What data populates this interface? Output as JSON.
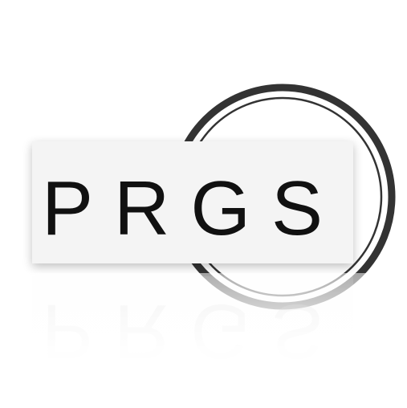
{
  "logo": {
    "text": "PRGS",
    "text_color": "#111111",
    "ring_color": "#333333",
    "panel_color": "#f4f4f4",
    "background": "#ffffff"
  }
}
